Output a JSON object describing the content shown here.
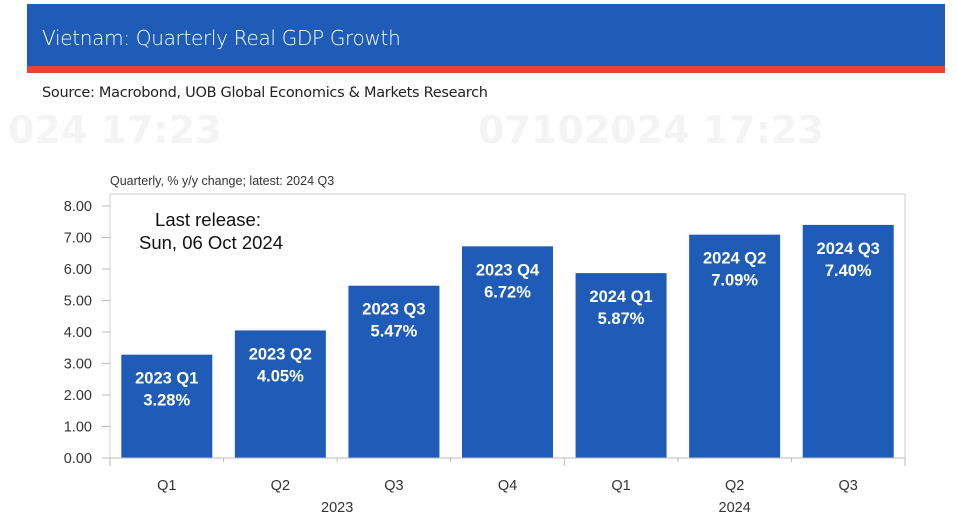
{
  "header": {
    "title": "Vietnam: Quarterly Real GDP Growth",
    "accent_color": "#1f5cb8",
    "stripe_color": "#e8433a"
  },
  "source": "Source: Macrobond, UOB Global Economics & Markets Research",
  "watermark": [
    "024 17:23",
    "07102024 17:23"
  ],
  "chart_data": {
    "type": "bar",
    "subtitle": "Quarterly, % y/y change; latest: 2024 Q3",
    "annotation": [
      "Last release:",
      "Sun, 06 Oct 2024"
    ],
    "categories": [
      "Q1",
      "Q2",
      "Q3",
      "Q4",
      "Q1",
      "Q2",
      "Q3"
    ],
    "groups": [
      {
        "label": "2023",
        "count": 4
      },
      {
        "label": "2024",
        "count": 3
      }
    ],
    "values": [
      3.28,
      4.05,
      5.47,
      6.72,
      5.87,
      7.09,
      7.4
    ],
    "data_labels": [
      [
        "2023 Q1",
        "3.28%"
      ],
      [
        "2023 Q2",
        "4.05%"
      ],
      [
        "2023 Q3",
        "5.47%"
      ],
      [
        "2023 Q4",
        "6.72%"
      ],
      [
        "2024 Q1",
        "5.87%"
      ],
      [
        "2024 Q2",
        "7.09%"
      ],
      [
        "2024 Q3",
        "7.40%"
      ]
    ],
    "ylim": [
      0,
      8
    ],
    "yticks": [
      "0.00",
      "1.00",
      "2.00",
      "3.00",
      "4.00",
      "5.00",
      "6.00",
      "7.00",
      "8.00"
    ],
    "bar_color": "#1f5cb8",
    "grid": false,
    "legend": "none"
  }
}
